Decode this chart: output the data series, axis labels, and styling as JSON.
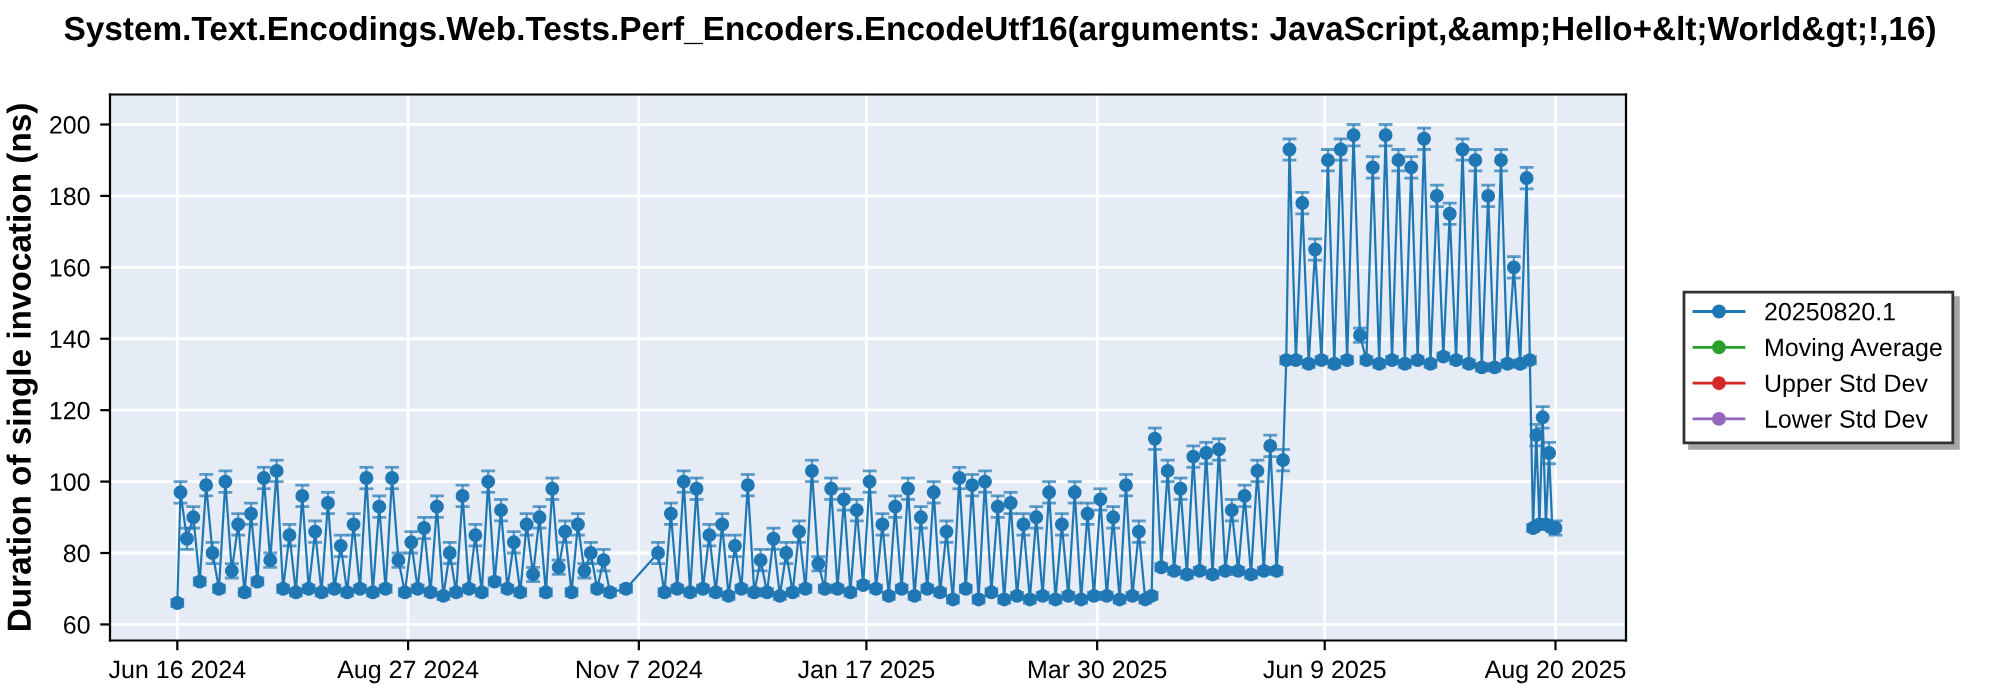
{
  "chart_data": {
    "type": "line",
    "title": "System.Text.Encodings.Web.Tests.Perf_Encoders.EncodeUtf16(arguments: JavaScript,&amp;Hello+&lt;World&gt;!,16)",
    "ylabel": "Duration of single invocation (ns)",
    "xlim": [
      "2024-05-26",
      "2025-09-11"
    ],
    "xticks": [
      {
        "value": "2024-06-16",
        "label": "Jun 16 2024"
      },
      {
        "value": "2024-08-27",
        "label": "Aug 27 2024"
      },
      {
        "value": "2024-11-07",
        "label": "Nov 7 2024"
      },
      {
        "value": "2025-01-17",
        "label": "Jan 17 2025"
      },
      {
        "value": "2025-03-30",
        "label": "Mar 30 2025"
      },
      {
        "value": "2025-06-09",
        "label": "Jun 9 2025"
      },
      {
        "value": "2025-08-20",
        "label": "Aug 20 2025"
      }
    ],
    "ylim": [
      55.5,
      208.4
    ],
    "yticks": [
      60,
      80,
      100,
      120,
      140,
      160,
      180,
      200
    ],
    "grid": true,
    "legend": "right",
    "marker": "circle",
    "line_style": "solid",
    "series": [
      {
        "name": "20250820.1",
        "color": "#1f77b4",
        "x": [
          "2024-06-16",
          "2024-06-17",
          "2024-06-19",
          "2024-06-21",
          "2024-06-23",
          "2024-06-25",
          "2024-06-27",
          "2024-06-29",
          "2024-07-01",
          "2024-07-03",
          "2024-07-05",
          "2024-07-07",
          "2024-07-09",
          "2024-07-11",
          "2024-07-13",
          "2024-07-15",
          "2024-07-17",
          "2024-07-19",
          "2024-07-21",
          "2024-07-23",
          "2024-07-25",
          "2024-07-27",
          "2024-07-29",
          "2024-07-31",
          "2024-08-02",
          "2024-08-04",
          "2024-08-06",
          "2024-08-08",
          "2024-08-10",
          "2024-08-12",
          "2024-08-14",
          "2024-08-16",
          "2024-08-18",
          "2024-08-20",
          "2024-08-22",
          "2024-08-24",
          "2024-08-26",
          "2024-08-28",
          "2024-08-30",
          "2024-09-01",
          "2024-09-03",
          "2024-09-05",
          "2024-09-07",
          "2024-09-09",
          "2024-09-11",
          "2024-09-13",
          "2024-09-15",
          "2024-09-17",
          "2024-09-19",
          "2024-09-21",
          "2024-09-23",
          "2024-09-25",
          "2024-09-27",
          "2024-09-29",
          "2024-10-01",
          "2024-10-03",
          "2024-10-05",
          "2024-10-07",
          "2024-10-09",
          "2024-10-11",
          "2024-10-13",
          "2024-10-15",
          "2024-10-17",
          "2024-10-19",
          "2024-10-21",
          "2024-10-23",
          "2024-10-25",
          "2024-10-27",
          "2024-10-29",
          "2024-11-03",
          "2024-11-13",
          "2024-11-15",
          "2024-11-17",
          "2024-11-19",
          "2024-11-21",
          "2024-11-23",
          "2024-11-25",
          "2024-11-27",
          "2024-11-29",
          "2024-12-01",
          "2024-12-03",
          "2024-12-05",
          "2024-12-07",
          "2024-12-09",
          "2024-12-11",
          "2024-12-13",
          "2024-12-15",
          "2024-12-17",
          "2024-12-19",
          "2024-12-21",
          "2024-12-23",
          "2024-12-25",
          "2024-12-27",
          "2024-12-29",
          "2024-12-31",
          "2025-01-02",
          "2025-01-04",
          "2025-01-06",
          "2025-01-08",
          "2025-01-10",
          "2025-01-12",
          "2025-01-14",
          "2025-01-16",
          "2025-01-18",
          "2025-01-20",
          "2025-01-22",
          "2025-01-24",
          "2025-01-26",
          "2025-01-28",
          "2025-01-30",
          "2025-02-01",
          "2025-02-03",
          "2025-02-05",
          "2025-02-07",
          "2025-02-09",
          "2025-02-11",
          "2025-02-13",
          "2025-02-15",
          "2025-02-17",
          "2025-02-19",
          "2025-02-21",
          "2025-02-23",
          "2025-02-25",
          "2025-02-27",
          "2025-03-01",
          "2025-03-03",
          "2025-03-05",
          "2025-03-07",
          "2025-03-09",
          "2025-03-11",
          "2025-03-13",
          "2025-03-15",
          "2025-03-17",
          "2025-03-19",
          "2025-03-21",
          "2025-03-23",
          "2025-03-25",
          "2025-03-27",
          "2025-03-29",
          "2025-03-31",
          "2025-04-02",
          "2025-04-04",
          "2025-04-06",
          "2025-04-08",
          "2025-04-10",
          "2025-04-12",
          "2025-04-14",
          "2025-04-16",
          "2025-04-17",
          "2025-04-19",
          "2025-04-21",
          "2025-04-23",
          "2025-04-25",
          "2025-04-27",
          "2025-04-29",
          "2025-05-01",
          "2025-05-03",
          "2025-05-05",
          "2025-05-07",
          "2025-05-09",
          "2025-05-11",
          "2025-05-13",
          "2025-05-15",
          "2025-05-17",
          "2025-05-19",
          "2025-05-21",
          "2025-05-23",
          "2025-05-25",
          "2025-05-27",
          "2025-05-28",
          "2025-05-29",
          "2025-05-31",
          "2025-06-02",
          "2025-06-04",
          "2025-06-06",
          "2025-06-08",
          "2025-06-10",
          "2025-06-12",
          "2025-06-14",
          "2025-06-16",
          "2025-06-18",
          "2025-06-20",
          "2025-06-22",
          "2025-06-24",
          "2025-06-26",
          "2025-06-28",
          "2025-06-30",
          "2025-07-02",
          "2025-07-04",
          "2025-07-06",
          "2025-07-08",
          "2025-07-10",
          "2025-07-12",
          "2025-07-14",
          "2025-07-16",
          "2025-07-18",
          "2025-07-20",
          "2025-07-22",
          "2025-07-24",
          "2025-07-26",
          "2025-07-28",
          "2025-07-30",
          "2025-08-01",
          "2025-08-03",
          "2025-08-05",
          "2025-08-07",
          "2025-08-09",
          "2025-08-11",
          "2025-08-12",
          "2025-08-13",
          "2025-08-14",
          "2025-08-15",
          "2025-08-16",
          "2025-08-17",
          "2025-08-18",
          "2025-08-19",
          "2025-08-20"
        ],
        "values": [
          66,
          97,
          84,
          90,
          72,
          99,
          80,
          70,
          100,
          75,
          88,
          69,
          91,
          72,
          101,
          78,
          103,
          70,
          85,
          69,
          96,
          70,
          86,
          69,
          94,
          70,
          82,
          69,
          88,
          70,
          101,
          69,
          93,
          70,
          101,
          78,
          69,
          83,
          70,
          87,
          69,
          93,
          68,
          80,
          69,
          96,
          70,
          85,
          69,
          100,
          72,
          92,
          70,
          83,
          69,
          88,
          74,
          90,
          69,
          98,
          76,
          86,
          69,
          88,
          75,
          80,
          70,
          78,
          69,
          70,
          80,
          69,
          91,
          70,
          100,
          69,
          98,
          70,
          85,
          69,
          88,
          68,
          82,
          70,
          99,
          69,
          78,
          69,
          84,
          68,
          80,
          69,
          86,
          70,
          103,
          77,
          70,
          98,
          70,
          95,
          69,
          92,
          71,
          100,
          70,
          88,
          68,
          93,
          70,
          98,
          68,
          90,
          70,
          97,
          69,
          86,
          67,
          101,
          70,
          99,
          67,
          100,
          69,
          93,
          67,
          94,
          68,
          88,
          67,
          90,
          68,
          97,
          67,
          88,
          68,
          97,
          67,
          91,
          68,
          95,
          68,
          90,
          67,
          99,
          68,
          86,
          67,
          68,
          112,
          76,
          103,
          75,
          98,
          74,
          107,
          75,
          108,
          74,
          109,
          75,
          92,
          75,
          96,
          74,
          103,
          75,
          110,
          75,
          106,
          134,
          193,
          134,
          178,
          133,
          165,
          134,
          190,
          133,
          193,
          134,
          197,
          141,
          134,
          188,
          133,
          197,
          134,
          190,
          133,
          188,
          134,
          196,
          133,
          180,
          135,
          175,
          134,
          193,
          133,
          190,
          132,
          180,
          132,
          190,
          133,
          160,
          133,
          185,
          134,
          87,
          113,
          88,
          118,
          88,
          108,
          87,
          87
        ],
        "errors": [
          1,
          3,
          3,
          3,
          1,
          3,
          3,
          1,
          3,
          2,
          3,
          1,
          3,
          1,
          3,
          2,
          3,
          1,
          3,
          1,
          3,
          1,
          3,
          1,
          3,
          1,
          3,
          1,
          3,
          1,
          3,
          1,
          3,
          1,
          3,
          2,
          1,
          3,
          1,
          3,
          1,
          3,
          1,
          3,
          1,
          3,
          1,
          3,
          1,
          3,
          1,
          3,
          1,
          3,
          1,
          3,
          2,
          3,
          1,
          3,
          2,
          3,
          1,
          3,
          2,
          3,
          1,
          3,
          1,
          1,
          3,
          1,
          3,
          1,
          3,
          1,
          3,
          1,
          3,
          1,
          3,
          1,
          3,
          1,
          3,
          1,
          3,
          1,
          3,
          1,
          3,
          1,
          3,
          1,
          3,
          2,
          1,
          3,
          1,
          3,
          1,
          3,
          1,
          3,
          1,
          3,
          1,
          3,
          1,
          3,
          1,
          3,
          1,
          3,
          1,
          3,
          1,
          3,
          1,
          3,
          1,
          3,
          1,
          3,
          1,
          3,
          1,
          3,
          1,
          3,
          1,
          3,
          1,
          3,
          1,
          3,
          1,
          3,
          1,
          3,
          1,
          3,
          1,
          3,
          1,
          3,
          1,
          1,
          3,
          1,
          3,
          1,
          3,
          1,
          3,
          1,
          3,
          1,
          3,
          1,
          3,
          1,
          3,
          1,
          3,
          1,
          3,
          1,
          3,
          1,
          3,
          1,
          3,
          1,
          3,
          1,
          3,
          1,
          3,
          1,
          3,
          2,
          1,
          3,
          1,
          3,
          1,
          3,
          1,
          3,
          1,
          3,
          1,
          3,
          1,
          3,
          1,
          3,
          1,
          3,
          1,
          3,
          1,
          3,
          1,
          3,
          1,
          3,
          1,
          1,
          3,
          1,
          3,
          1,
          3,
          1,
          2
        ]
      },
      {
        "name": "Moving Average",
        "color": "#2ca02c"
      },
      {
        "name": "Upper Std Dev",
        "color": "#d62728"
      },
      {
        "name": "Lower Std Dev",
        "color": "#9467bd"
      }
    ]
  }
}
